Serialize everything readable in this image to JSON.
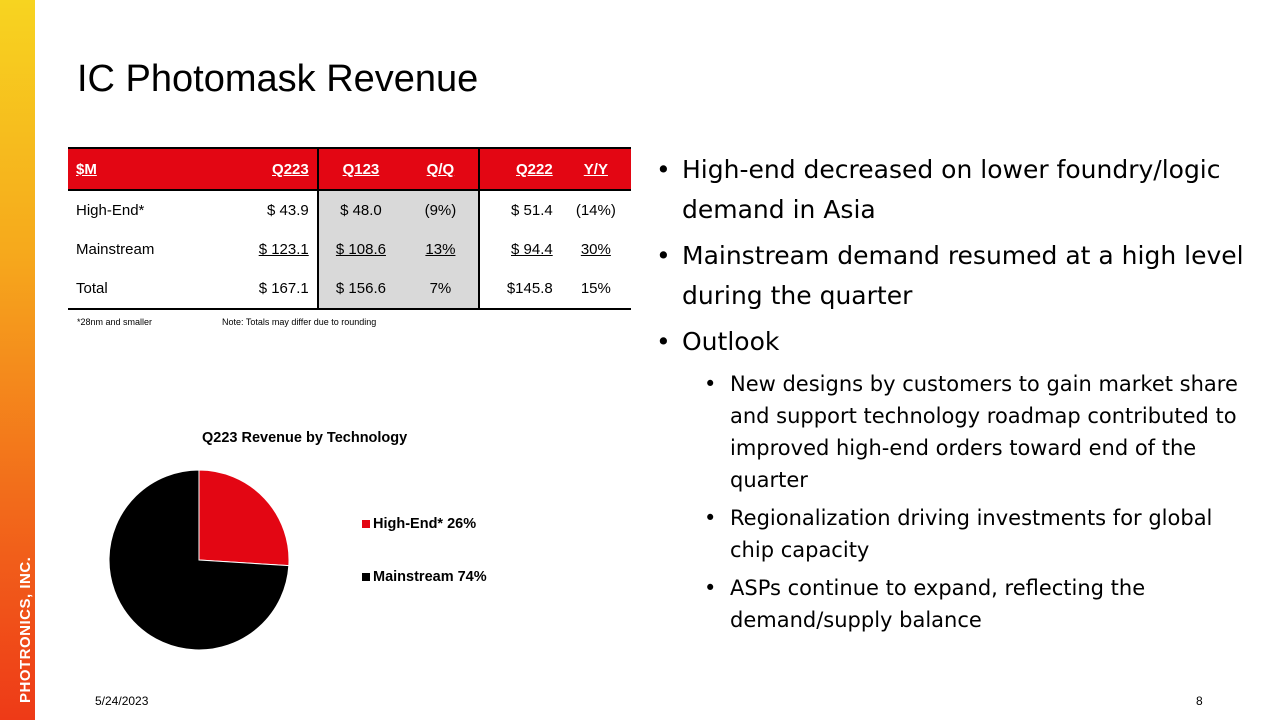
{
  "brand": {
    "name": "PHOTRONICS, INC.",
    "accent": "#e30613"
  },
  "title": "IC Photomask Revenue",
  "table": {
    "headers": [
      "$M",
      "Q223",
      "Q123",
      "Q/Q",
      "Q222",
      "Y/Y"
    ],
    "rows": [
      [
        "High-End*",
        "$ 43.9",
        "$ 48.0",
        "(9%)",
        "$ 51.4",
        "(14%)"
      ],
      [
        "Mainstream",
        "$ 123.1",
        "$ 108.6",
        "13%",
        "$ 94.4",
        "30%"
      ],
      [
        "Total",
        "$ 167.1",
        "$ 156.6",
        "7%",
        "$145.8",
        "15%"
      ]
    ]
  },
  "footnotes": {
    "left": "*28nm and smaller",
    "right": "Note: Totals may differ due to rounding"
  },
  "chart_data": {
    "type": "pie",
    "title": "Q223 Revenue by Technology",
    "categories": [
      "High-End*",
      "Mainstream"
    ],
    "values": [
      26,
      74
    ],
    "labels": [
      "High-End* 26%",
      "Mainstream 74%"
    ],
    "colors": [
      "#e30613",
      "#000000"
    ],
    "legend": "right"
  },
  "bullets": [
    {
      "text": "High-end decreased on lower foundry/logic demand in Asia"
    },
    {
      "text": "Mainstream demand resumed at a high level during the quarter"
    },
    {
      "text": "Outlook",
      "sub": [
        "New designs by customers to gain market share and support technology roadmap contributed to improved high-end orders toward end of the quarter",
        "Regionalization driving investments for global chip capacity",
        "ASPs continue to expand, reflecting the demand/supply balance"
      ]
    }
  ],
  "footer": {
    "date": "5/24/2023",
    "page": "8"
  }
}
